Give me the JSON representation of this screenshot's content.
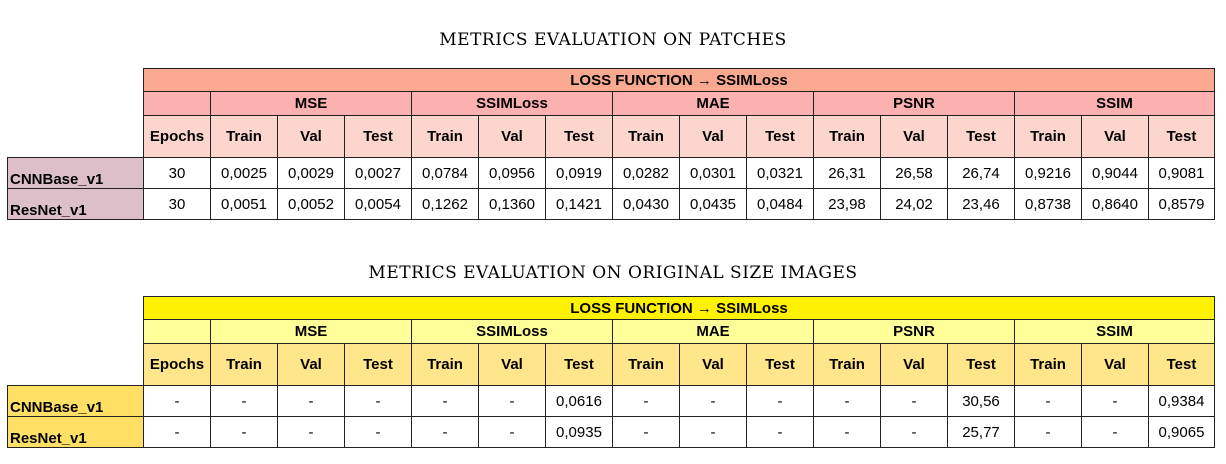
{
  "loss_label": "LOSS FUNCTION → SSIMLoss",
  "groups": [
    "MSE",
    "SSIMLoss",
    "MAE",
    "PSNR",
    "SSIM"
  ],
  "epochs_label": "Epochs",
  "sub_labels": [
    "Train",
    "Val",
    "Test"
  ],
  "patches": {
    "title": "METRICS EVALUATION ON PATCHES",
    "rows": [
      {
        "model": "CNNBase_v1",
        "values": [
          "30",
          "0,0025",
          "0,0029",
          "0,0027",
          "0,0784",
          "0,0956",
          "0,0919",
          "0,0282",
          "0,0301",
          "0,0321",
          "26,31",
          "26,58",
          "26,74",
          "0,9216",
          "0,9044",
          "0,9081"
        ]
      },
      {
        "model": "ResNet_v1",
        "values": [
          "30",
          "0,0051",
          "0,0052",
          "0,0054",
          "0,1262",
          "0,1360",
          "0,1421",
          "0,0430",
          "0,0435",
          "0,0484",
          "23,98",
          "24,02",
          "23,46",
          "0,8738",
          "0,8640",
          "0,8579"
        ]
      }
    ]
  },
  "original": {
    "title": "METRICS EVALUATION ON ORIGINAL SIZE IMAGES",
    "rows": [
      {
        "model": "CNNBase_v1",
        "values": [
          "-",
          "-",
          "-",
          "-",
          "-",
          "-",
          "0,0616",
          "-",
          "-",
          "-",
          "-",
          "-",
          "30,56",
          "-",
          "-",
          "0,9384"
        ]
      },
      {
        "model": "ResNet_v1",
        "values": [
          "-",
          "-",
          "-",
          "-",
          "-",
          "-",
          "0,0935",
          "-",
          "-",
          "-",
          "-",
          "-",
          "25,77",
          "-",
          "-",
          "0,9065"
        ]
      }
    ]
  }
}
